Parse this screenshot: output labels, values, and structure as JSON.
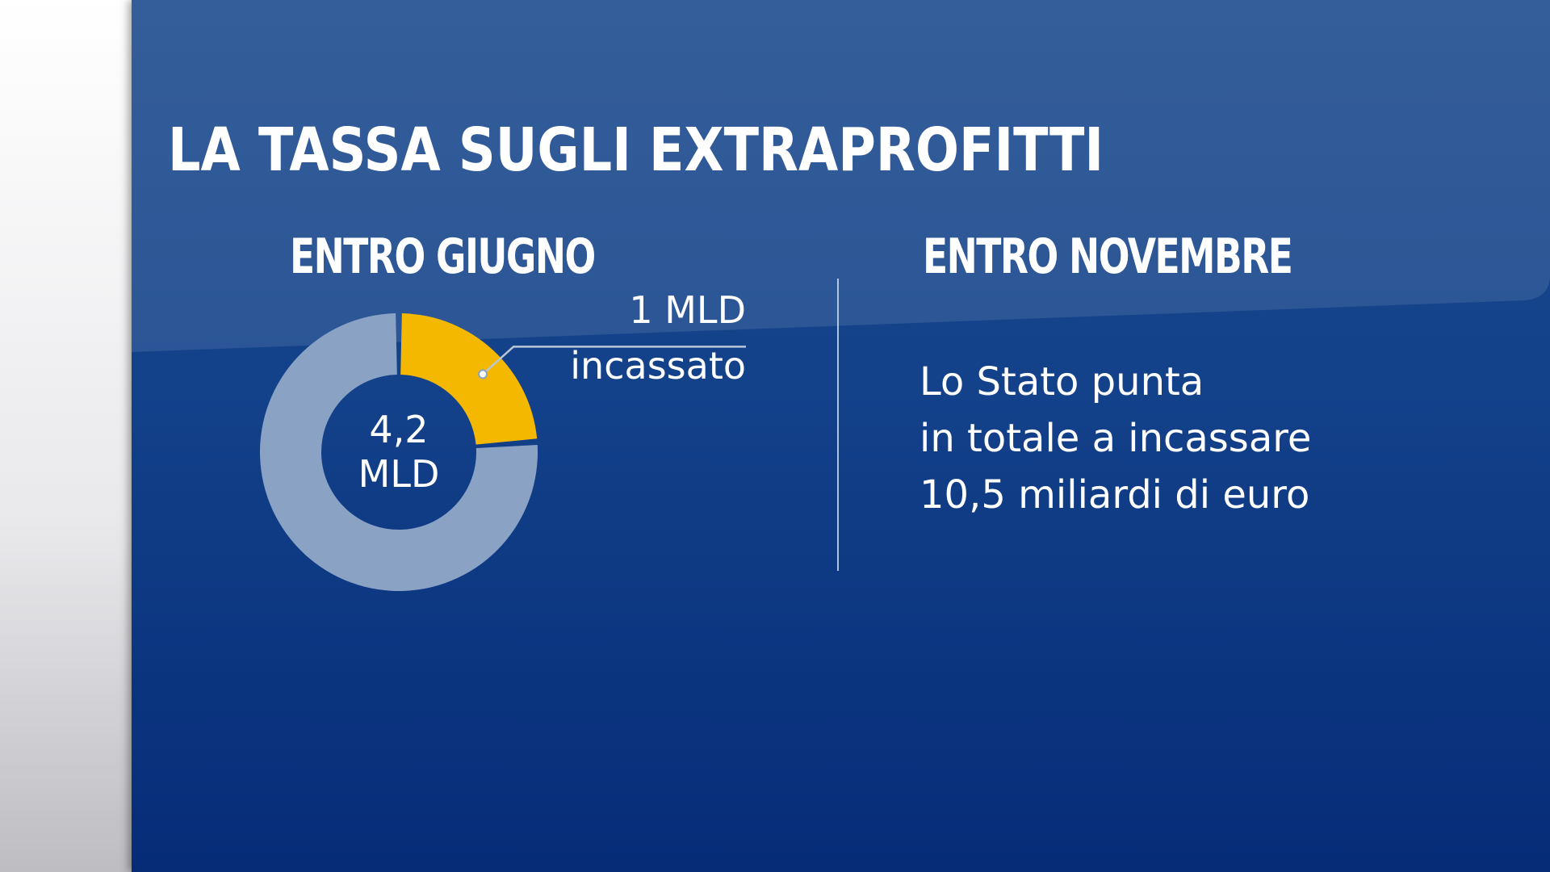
{
  "title": "LA TASSA SUGLI EXTRAPROFITTI",
  "left_heading": "ENTRO GIUGNO",
  "right_heading": "ENTRO NOVEMBRE",
  "colors": {
    "background": "#13418a",
    "collected": "#f5b800",
    "remaining": "#8aa2c4",
    "text": "#ffffff"
  },
  "chart_data": {
    "type": "pie",
    "variant": "donut",
    "center_label": [
      "4,2",
      "MLD"
    ],
    "total": 4.2,
    "slices": [
      {
        "value": 1.0,
        "color": "#f5b800"
      },
      {
        "value": 3.2,
        "color": "#8aa2c4"
      }
    ],
    "callout": {
      "value": "1 MLD",
      "label": "incassato"
    }
  },
  "right_text": [
    "Lo Stato punta",
    "in totale a incassare",
    "10,5 miliardi di euro"
  ]
}
